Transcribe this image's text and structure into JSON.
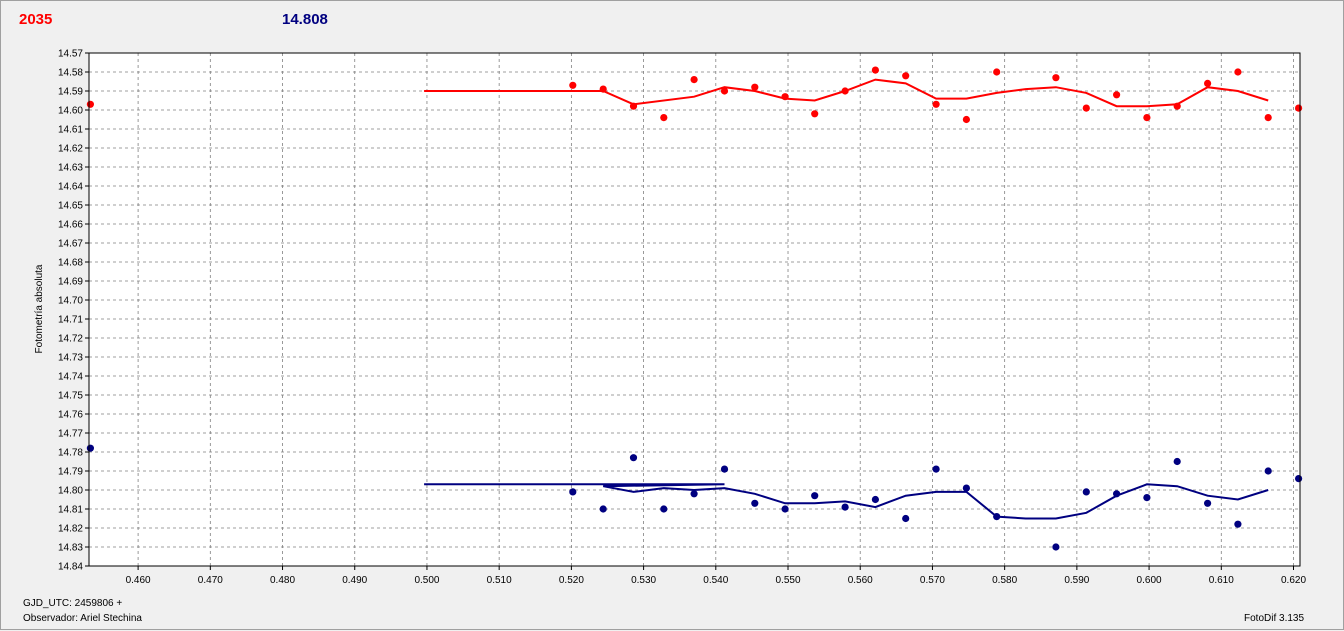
{
  "header": {
    "left_value": "2035",
    "right_value": "14.808"
  },
  "footer": {
    "gjd_label": "GJD_UTC: 2459806 +",
    "observer_label": "Observador: Ariel Stechina",
    "version_label": "FotoDif 3.135"
  },
  "colors": {
    "series_red": "#ff0000",
    "series_blue": "#000080",
    "grid": "#808080"
  },
  "chart_data": {
    "type": "scatter",
    "title": "",
    "xlabel": "",
    "ylabel": "Fotometría absoluta",
    "xlim": [
      0.4532,
      0.6209
    ],
    "ylim": [
      14.84,
      14.57
    ],
    "y_inverted": true,
    "grid": true,
    "x_ticks": [
      "0.460",
      "0.470",
      "0.480",
      "0.490",
      "0.500",
      "0.510",
      "0.520",
      "0.530",
      "0.540",
      "0.550",
      "0.560",
      "0.570",
      "0.580",
      "0.590",
      "0.600",
      "0.610",
      "0.620"
    ],
    "y_ticks": [
      "14.57",
      "14.58",
      "14.59",
      "14.60",
      "14.61",
      "14.62",
      "14.63",
      "14.64",
      "14.65",
      "14.66",
      "14.67",
      "14.68",
      "14.69",
      "14.70",
      "14.71",
      "14.72",
      "14.73",
      "14.74",
      "14.75",
      "14.76",
      "14.77",
      "14.78",
      "14.79",
      "14.80",
      "14.81",
      "14.82",
      "14.83",
      "14.84"
    ],
    "series": [
      {
        "color": "#ff0000",
        "points": [
          [
            0.4534,
            14.597
          ],
          [
            0.5202,
            14.587
          ],
          [
            0.5244,
            14.589
          ],
          [
            0.5286,
            14.598
          ],
          [
            0.5328,
            14.604
          ],
          [
            0.537,
            14.584
          ],
          [
            0.5412,
            14.59
          ],
          [
            0.5454,
            14.588
          ],
          [
            0.5496,
            14.593
          ],
          [
            0.5537,
            14.602
          ],
          [
            0.5579,
            14.59
          ],
          [
            0.5621,
            14.579
          ],
          [
            0.5663,
            14.582
          ],
          [
            0.5705,
            14.597
          ],
          [
            0.5747,
            14.605
          ],
          [
            0.5789,
            14.58
          ],
          [
            0.5871,
            14.583
          ],
          [
            0.5913,
            14.599
          ],
          [
            0.5955,
            14.592
          ],
          [
            0.5997,
            14.604
          ],
          [
            0.6039,
            14.598
          ],
          [
            0.6081,
            14.586
          ],
          [
            0.6123,
            14.58
          ],
          [
            0.6165,
            14.604
          ],
          [
            0.6207,
            14.599
          ]
        ],
        "line": [
          [
            0.4996,
            14.59
          ],
          [
            0.5244,
            14.59
          ],
          [
            0.5286,
            14.597
          ],
          [
            0.537,
            14.593
          ],
          [
            0.5412,
            14.588
          ],
          [
            0.5454,
            14.59
          ],
          [
            0.5496,
            14.594
          ],
          [
            0.5537,
            14.595
          ],
          [
            0.5579,
            14.59
          ],
          [
            0.5621,
            14.584
          ],
          [
            0.5663,
            14.586
          ],
          [
            0.5705,
            14.594
          ],
          [
            0.5747,
            14.594
          ],
          [
            0.5789,
            14.591
          ],
          [
            0.5829,
            14.589
          ],
          [
            0.5871,
            14.588
          ],
          [
            0.5913,
            14.591
          ],
          [
            0.5955,
            14.598
          ],
          [
            0.5997,
            14.598
          ],
          [
            0.6039,
            14.597
          ],
          [
            0.6081,
            14.588
          ],
          [
            0.6123,
            14.59
          ],
          [
            0.6165,
            14.595
          ]
        ]
      },
      {
        "color": "#000080",
        "points": [
          [
            0.4534,
            14.778
          ],
          [
            0.5202,
            14.801
          ],
          [
            0.5244,
            14.81
          ],
          [
            0.5286,
            14.783
          ],
          [
            0.5328,
            14.81
          ],
          [
            0.537,
            14.802
          ],
          [
            0.5412,
            14.789
          ],
          [
            0.5454,
            14.807
          ],
          [
            0.5496,
            14.81
          ],
          [
            0.5537,
            14.803
          ],
          [
            0.5579,
            14.809
          ],
          [
            0.5621,
            14.805
          ],
          [
            0.5663,
            14.815
          ],
          [
            0.5705,
            14.789
          ],
          [
            0.5747,
            14.799
          ],
          [
            0.5789,
            14.814
          ],
          [
            0.5871,
            14.83
          ],
          [
            0.5913,
            14.801
          ],
          [
            0.5955,
            14.802
          ],
          [
            0.5997,
            14.804
          ],
          [
            0.6039,
            14.785
          ],
          [
            0.6081,
            14.807
          ],
          [
            0.6123,
            14.818
          ],
          [
            0.6165,
            14.79
          ],
          [
            0.6207,
            14.794
          ]
        ],
        "line": [
          [
            0.4996,
            14.797
          ],
          [
            0.5412,
            14.797
          ],
          [
            0.5244,
            14.798
          ],
          [
            0.5286,
            14.801
          ],
          [
            0.5328,
            14.799
          ],
          [
            0.537,
            14.8
          ],
          [
            0.5412,
            14.799
          ],
          [
            0.5454,
            14.802
          ],
          [
            0.5496,
            14.807
          ],
          [
            0.5537,
            14.807
          ],
          [
            0.5579,
            14.806
          ],
          [
            0.5621,
            14.809
          ],
          [
            0.5663,
            14.803
          ],
          [
            0.5705,
            14.801
          ],
          [
            0.5747,
            14.801
          ],
          [
            0.5789,
            14.814
          ],
          [
            0.5829,
            14.815
          ],
          [
            0.5871,
            14.815
          ],
          [
            0.5913,
            14.812
          ],
          [
            0.5955,
            14.803
          ],
          [
            0.5997,
            14.797
          ],
          [
            0.6039,
            14.798
          ],
          [
            0.6081,
            14.803
          ],
          [
            0.6123,
            14.805
          ],
          [
            0.6165,
            14.8
          ]
        ]
      }
    ]
  }
}
